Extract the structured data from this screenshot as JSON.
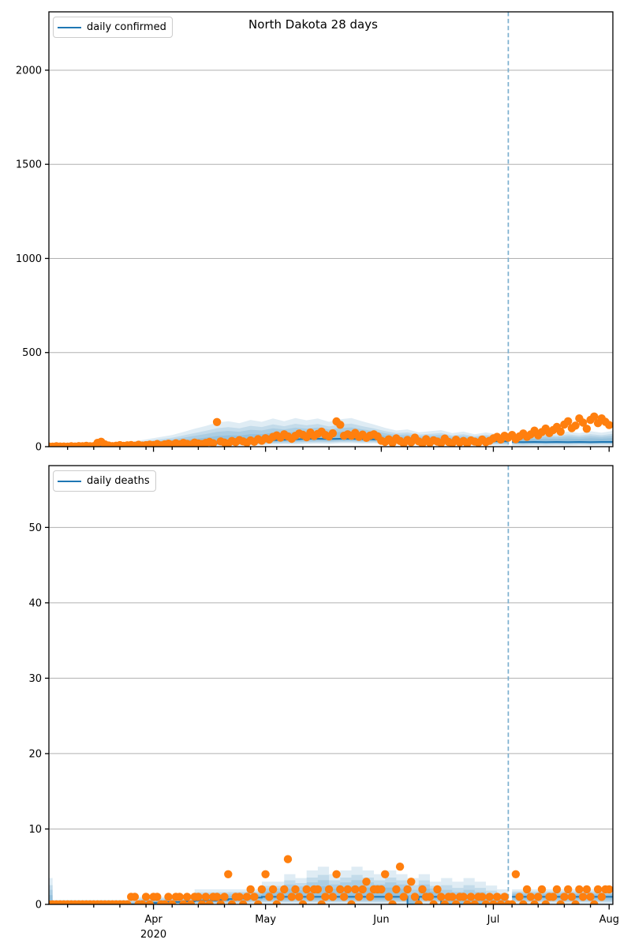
{
  "figure_title": "North Dakota 28 days",
  "xaxis": {
    "months": [
      {
        "label": "Apr",
        "day": 28,
        "year": "2020"
      },
      {
        "label": "May",
        "day": 58
      },
      {
        "label": "Jun",
        "day": 89
      },
      {
        "label": "Jul",
        "day": 119
      },
      {
        "label": "Aug",
        "day": 150
      }
    ],
    "minor_tick_start_day": 5,
    "minor_tick_step_days": 7,
    "days_total": 151
  },
  "style": {
    "scatter_color": "#ff7f0e",
    "line_color": "#1f77b4",
    "band_color": "#1f77b4",
    "band_opacity": 0.14,
    "band_levels": [
      1,
      0.73,
      0.55,
      0.35
    ],
    "vline_color": "#7aaecf",
    "grid_color": "#b0b0b0",
    "spine_color": "#000000",
    "text_color": "#000000"
  },
  "chart_data": [
    {
      "type": "scatter+line+band",
      "title": "North Dakota 28 days",
      "legend": "daily confirmed",
      "yticks": [
        0,
        500,
        1000,
        1500,
        2000
      ],
      "ylim": [
        0,
        2310
      ],
      "forecast_start_day": 123,
      "hist_end_idx": 42,
      "step": false,
      "band_days": [
        0,
        1,
        3,
        6,
        9,
        12,
        15,
        18,
        21,
        24,
        27,
        30,
        33,
        36,
        39,
        42,
        45,
        48,
        51,
        54,
        57,
        60,
        63,
        66,
        69,
        72,
        75,
        78,
        81,
        84,
        87,
        90,
        93,
        96,
        99,
        102,
        105,
        108,
        111,
        114,
        117,
        120,
        123,
        124,
        127,
        130,
        133,
        136,
        139,
        142,
        145,
        148,
        151
      ],
      "band_upper": [
        4,
        4,
        5,
        6,
        6,
        8,
        10,
        14,
        22,
        32,
        42,
        52,
        62,
        78,
        95,
        110,
        128,
        135,
        125,
        142,
        132,
        150,
        135,
        152,
        140,
        150,
        132,
        146,
        152,
        134,
        118,
        100,
        86,
        92,
        76,
        82,
        88,
        72,
        80,
        66,
        76,
        66,
        62,
        64,
        74,
        66,
        78,
        70,
        80,
        72,
        82,
        74,
        84
      ],
      "band_lower": [
        0.5,
        0.5,
        0.5,
        1,
        0.5,
        1,
        1,
        1.5,
        1,
        2,
        2,
        2,
        3,
        3,
        3,
        4,
        5,
        4,
        6,
        7,
        8,
        10,
        12,
        11,
        14,
        15,
        14,
        17,
        18,
        16,
        17,
        14,
        12,
        13,
        10,
        9,
        11,
        8,
        9,
        7,
        8,
        7,
        6,
        6,
        5,
        7,
        6,
        7,
        6,
        8,
        7,
        8,
        8
      ],
      "median": [
        2,
        2,
        2,
        3,
        3,
        4,
        4,
        5,
        5,
        6,
        7,
        8,
        10,
        11,
        12,
        15,
        18,
        20,
        23,
        26,
        30,
        34,
        37,
        39,
        42,
        42,
        41,
        42,
        42,
        40,
        39,
        36,
        34,
        32,
        31,
        30,
        30,
        29,
        29,
        29,
        29,
        29,
        28,
        25,
        24,
        25,
        24,
        25,
        24,
        25,
        24,
        25,
        25
      ],
      "scatter_daily": [
        1,
        0,
        2,
        1,
        1,
        0,
        2,
        1,
        3,
        2,
        4,
        2,
        3,
        20,
        26,
        12,
        6,
        3,
        5,
        8,
        4,
        7,
        9,
        5,
        10,
        6,
        8,
        11,
        9,
        14,
        7,
        12,
        16,
        10,
        18,
        13,
        20,
        15,
        11,
        22,
        17,
        14,
        20,
        25,
        18,
        131,
        28,
        22,
        16,
        30,
        24,
        35,
        28,
        21,
        33,
        26,
        40,
        32,
        45,
        38,
        52,
        60,
        48,
        66,
        55,
        42,
        58,
        70,
        63,
        50,
        75,
        57,
        68,
        80,
        62,
        54,
        71,
        134,
        116,
        58,
        66,
        58,
        73,
        52,
        64,
        47,
        59,
        66,
        55,
        32,
        25,
        39,
        20,
        44,
        30,
        17,
        36,
        23,
        48,
        28,
        16,
        40,
        21,
        34,
        27,
        19,
        43,
        25,
        18,
        37,
        22,
        30,
        16,
        33,
        27,
        21,
        38,
        24,
        31,
        44,
        52,
        38,
        58,
        48,
        62,
        40,
        55,
        70,
        52,
        65,
        85,
        60,
        78,
        96,
        72,
        88,
        105,
        80,
        118,
        135,
        98,
        112,
        150,
        128,
        95,
        142,
        160,
        125,
        150,
        132,
        115,
        null
      ]
    },
    {
      "type": "scatter+line+band",
      "title": "",
      "legend": "daily deaths",
      "yticks": [
        0,
        10,
        20,
        30,
        40,
        50
      ],
      "ylim": [
        0,
        58.2
      ],
      "forecast_start_day": 123,
      "hist_end_idx": 42,
      "step": true,
      "band_days": [
        0,
        1,
        3,
        6,
        9,
        12,
        15,
        18,
        21,
        24,
        27,
        30,
        33,
        36,
        39,
        42,
        45,
        48,
        51,
        54,
        57,
        60,
        63,
        66,
        69,
        72,
        75,
        78,
        81,
        84,
        87,
        90,
        93,
        96,
        99,
        102,
        105,
        108,
        111,
        114,
        117,
        120,
        123,
        124,
        127,
        130,
        133,
        136,
        139,
        142,
        145,
        148,
        151
      ],
      "band_upper": [
        3.5,
        0.6,
        0.6,
        0.6,
        0.6,
        0.6,
        0.6,
        0.6,
        0.6,
        1,
        1,
        1,
        1,
        1,
        2,
        2,
        2,
        2,
        2,
        2,
        3,
        3,
        4,
        3.5,
        4.5,
        5,
        4,
        4.5,
        5,
        4.5,
        4,
        4.5,
        4,
        3.5,
        4,
        3,
        3.5,
        3,
        3.5,
        3,
        2.5,
        2,
        2,
        2,
        2,
        2,
        2,
        2,
        2,
        2,
        2,
        2,
        2
      ],
      "band_lower": [
        0,
        0,
        0,
        0,
        0,
        0,
        0,
        0,
        0,
        0,
        0,
        0,
        0,
        0,
        0,
        0,
        0,
        0,
        0,
        0,
        0,
        0,
        0,
        0,
        0,
        0,
        0,
        0,
        0,
        0,
        0,
        0,
        0,
        0,
        0,
        0,
        0,
        0,
        0,
        0,
        0,
        0,
        0,
        0,
        0,
        0,
        0,
        0,
        0,
        0,
        0,
        0,
        0
      ],
      "median": [
        0,
        0,
        0,
        0,
        0,
        0,
        0,
        0,
        0,
        0.2,
        0.2,
        0.3,
        0.3,
        0.4,
        0.5,
        0.5,
        0.6,
        0.7,
        0.8,
        0.9,
        1,
        1,
        1,
        1,
        1,
        1,
        1,
        1,
        1,
        1,
        1,
        1,
        1,
        0,
        1,
        1,
        0,
        0,
        0,
        0,
        0,
        0,
        0,
        1,
        1,
        1,
        1,
        1,
        1,
        1,
        1,
        1,
        1
      ],
      "scatter_daily": [
        0,
        0,
        0,
        0,
        0,
        0,
        0,
        0,
        0,
        0,
        0,
        0,
        0,
        0,
        0,
        0,
        0,
        0,
        0,
        0,
        0,
        0,
        1,
        1,
        0,
        0,
        1,
        0,
        1,
        1,
        0,
        0,
        1,
        0,
        1,
        1,
        0,
        1,
        0,
        1,
        1,
        0,
        1,
        0,
        1,
        1,
        0,
        1,
        4,
        0,
        1,
        1,
        0,
        1,
        2,
        1,
        0,
        2,
        4,
        1,
        2,
        0,
        1,
        2,
        6,
        1,
        2,
        1,
        0,
        2,
        1,
        2,
        2,
        0,
        1,
        2,
        1,
        4,
        2,
        1,
        2,
        0,
        2,
        1,
        2,
        3,
        1,
        2,
        2,
        2,
        4,
        1,
        0,
        2,
        5,
        1,
        2,
        3,
        1,
        0,
        2,
        1,
        1,
        0,
        2,
        1,
        0,
        1,
        1,
        0,
        1,
        1,
        0,
        1,
        0,
        1,
        1,
        0,
        1,
        0,
        1,
        0,
        1,
        0,
        0,
        4,
        1,
        0,
        2,
        1,
        0,
        1,
        2,
        0,
        1,
        1,
        2,
        0,
        1,
        2,
        1,
        0,
        2,
        1,
        2,
        1,
        0,
        2,
        1,
        2,
        2,
        null
      ]
    }
  ]
}
